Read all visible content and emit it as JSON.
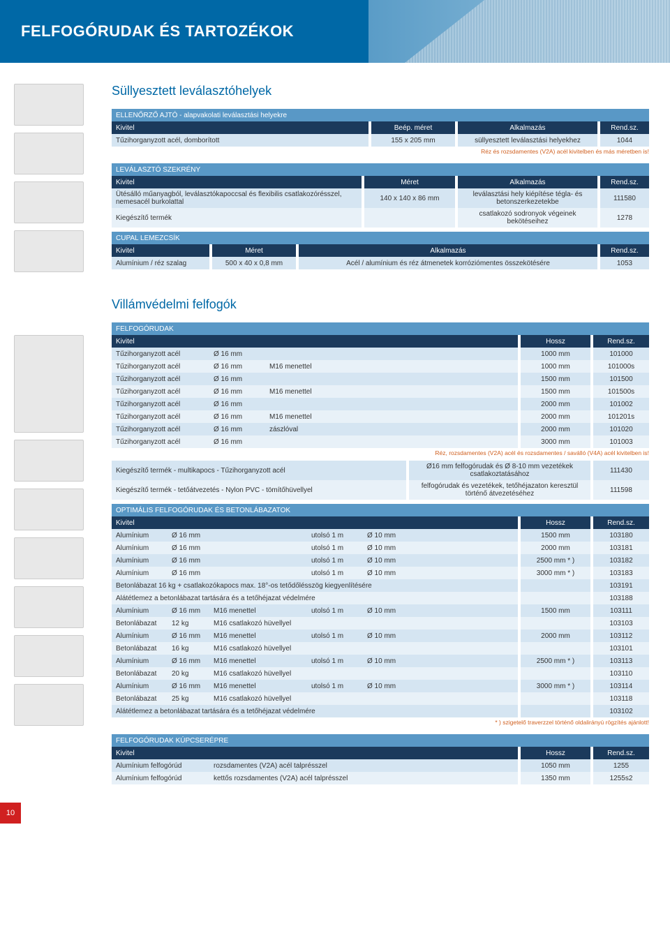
{
  "page_title": "FELFOGÓRUDAK ÉS TARTOZÉKOK",
  "page_number": "10",
  "colors": {
    "brand_blue": "#0068a6",
    "header_dark": "#1b3a5c",
    "header_mid": "#5998c6",
    "row_light": "#d5e5f2",
    "row_pale": "#e8f1f8",
    "footnote": "#d06020",
    "page_red": "#d02020"
  },
  "section1": {
    "title": "Süllyesztett leválasztóhelyek",
    "table1": {
      "caption": "ELLENŐRZŐ AJTÓ - alapvakolati leválasztási helyekre",
      "headers": [
        "Kivitel",
        "Beép. méret",
        "Alkalmazás",
        "Rend.sz."
      ],
      "rows": [
        [
          "Tűzihorganyzott acél, domborított",
          "155 x 205 mm",
          "süllyesztett leválasztási helyekhez",
          "1044"
        ]
      ],
      "footnote": "Réz és rozsdamentes (V2A) acél kivitelben és más méretben is!"
    },
    "table2": {
      "caption": "LEVÁLASZTÓ SZEKRÉNY",
      "headers": [
        "Kivitel",
        "Méret",
        "Alkalmazás",
        "Rend.sz."
      ],
      "rows": [
        [
          "Ütésálló műanyagból, leválasztókapoccsal és flexibilis csatlakozórésszel, nemesacél burkolattal",
          "140 x 140 x 86 mm",
          "leválasztási hely kiépítése tégla- és betonszerkezetekbe",
          "111580"
        ],
        [
          "Kiegészítő termék",
          "",
          "csatlakozó sodronyok végeinek bekötéseihez",
          "1278"
        ]
      ]
    },
    "table3": {
      "caption": "CUPAL LEMEZCSÍK",
      "headers": [
        "Kivitel",
        "Méret",
        "Alkalmazás",
        "Rend.sz."
      ],
      "rows": [
        [
          "Alumínium / réz szalag",
          "500 x 40 x 0,8 mm",
          "Acél / alumínium és réz átmenetek korróziómentes összekötésére",
          "1053"
        ]
      ]
    }
  },
  "section2": {
    "title": "Villámvédelmi felfogók",
    "table1": {
      "caption": "FELFOGÓRUDAK",
      "headers": [
        "Kivitel",
        "",
        "",
        "Hossz",
        "Rend.sz."
      ],
      "rows": [
        [
          "Tűzihorganyzott acél",
          "Ø 16 mm",
          "",
          "1000 mm",
          "101000"
        ],
        [
          "Tűzihorganyzott acél",
          "Ø 16 mm",
          "M16 menettel",
          "1000 mm",
          "101000s"
        ],
        [
          "Tűzihorganyzott acél",
          "Ø 16 mm",
          "",
          "1500 mm",
          "101500"
        ],
        [
          "Tűzihorganyzott acél",
          "Ø 16 mm",
          "M16 menettel",
          "1500 mm",
          "101500s"
        ],
        [
          "Tűzihorganyzott acél",
          "Ø 16 mm",
          "",
          "2000 mm",
          "101002"
        ],
        [
          "Tűzihorganyzott acél",
          "Ø 16 mm",
          "M16 menettel",
          "2000 mm",
          "101201s"
        ],
        [
          "Tűzihorganyzott acél",
          "Ø 16 mm",
          "zászlóval",
          "2000 mm",
          "101020"
        ],
        [
          "Tűzihorganyzott acél",
          "Ø 16 mm",
          "",
          "3000 mm",
          "101003"
        ]
      ],
      "footnote": "Réz, rozsdamentes (V2A) acél és rozsdamentes / saválló (V4A) acél kivitelben is!",
      "extras": [
        [
          "Kiegészítő termék - multikapocs - Tűzihorganyzott acél",
          "Ø16 mm felfogórudak és Ø 8-10 mm vezetékek csatlakoztatásához",
          "111430"
        ],
        [
          "Kiegészítő termék - tetőátvezetés - Nylon PVC - tömítőhüvellyel",
          "felfogórudak és vezetékek, tetőhéjazaton keresztül történő átvezetéséhez",
          "111598"
        ]
      ]
    },
    "table2": {
      "caption": "OPTIMÁLIS FELFOGÓRUDAK ÉS BETONLÁBAZATOK",
      "headers": [
        "Kivitel",
        "",
        "",
        "",
        "",
        "Hossz",
        "Rend.sz."
      ],
      "rows": [
        [
          "Alumínium",
          "Ø 16 mm",
          "",
          "utolsó 1 m",
          "Ø 10 mm",
          "1500 mm",
          "103180"
        ],
        [
          "Alumínium",
          "Ø 16 mm",
          "",
          "utolsó 1 m",
          "Ø 10 mm",
          "2000 mm",
          "103181"
        ],
        [
          "Alumínium",
          "Ø 16 mm",
          "",
          "utolsó 1 m",
          "Ø 10 mm",
          "2500 mm * )",
          "103182"
        ],
        [
          "Alumínium",
          "Ø 16 mm",
          "",
          "utolsó 1 m",
          "Ø 10 mm",
          "3000 mm * )",
          "103183"
        ],
        [
          "Betonlábazat   16 kg + csatlakozókapocs max. 18°-os tetődőlésszög kiegyenlítésére",
          "",
          "",
          "",
          "",
          "",
          "103191"
        ],
        [
          "Alátétlemez a betonlábazat tartására és a tetőhéjazat védelmére",
          "",
          "",
          "",
          "",
          "",
          "103188"
        ],
        [
          "Alumínium",
          "Ø 16 mm",
          "M16 menettel",
          "utolsó 1 m",
          "Ø 10 mm",
          "1500 mm",
          "103111"
        ],
        [
          "Betonlábazat",
          "12 kg",
          "M16 csatlakozó hüvellyel",
          "",
          "",
          "",
          "103103"
        ],
        [
          "Alumínium",
          "Ø 16 mm",
          "M16 menettel",
          "utolsó 1 m",
          "Ø 10 mm",
          "2000 mm",
          "103112"
        ],
        [
          "Betonlábazat",
          "16 kg",
          "M16 csatlakozó hüvellyel",
          "",
          "",
          "",
          "103101"
        ],
        [
          "Alumínium",
          "Ø 16 mm",
          "M16 menettel",
          "utolsó 1 m",
          "Ø 10 mm",
          "2500 mm * )",
          "103113"
        ],
        [
          "Betonlábazat",
          "20 kg",
          "M16 csatlakozó hüvellyel",
          "",
          "",
          "",
          "103110"
        ],
        [
          "Alumínium",
          "Ø 16 mm",
          "M16 menettel",
          "utolsó 1 m",
          "Ø 10 mm",
          "3000 mm * )",
          "103114"
        ],
        [
          "Betonlábazat",
          "25 kg",
          "M16 csatlakozó hüvellyel",
          "",
          "",
          "",
          "103118"
        ],
        [
          "Alátétlemez a betonlábazat tartására és a tetőhéjazat védelmére",
          "",
          "",
          "",
          "",
          "",
          "103102"
        ]
      ],
      "footnote": "* ) szigetelő traverzzel történő oldalirányú rögzítés ajánlott!"
    },
    "table3": {
      "caption": "FELFOGÓRUDAK KÚPCSERÉPRE",
      "headers": [
        "Kivitel",
        "",
        "Hossz",
        "Rend.sz."
      ],
      "rows": [
        [
          "Alumínium felfogórúd",
          "rozsdamentes (V2A) acél talprésszel",
          "1050 mm",
          "1255"
        ],
        [
          "Alumínium  felfogórúd",
          "kettős rozsdamentes (V2A) acél talprésszel",
          "1350 mm",
          "1255s2"
        ]
      ]
    }
  }
}
